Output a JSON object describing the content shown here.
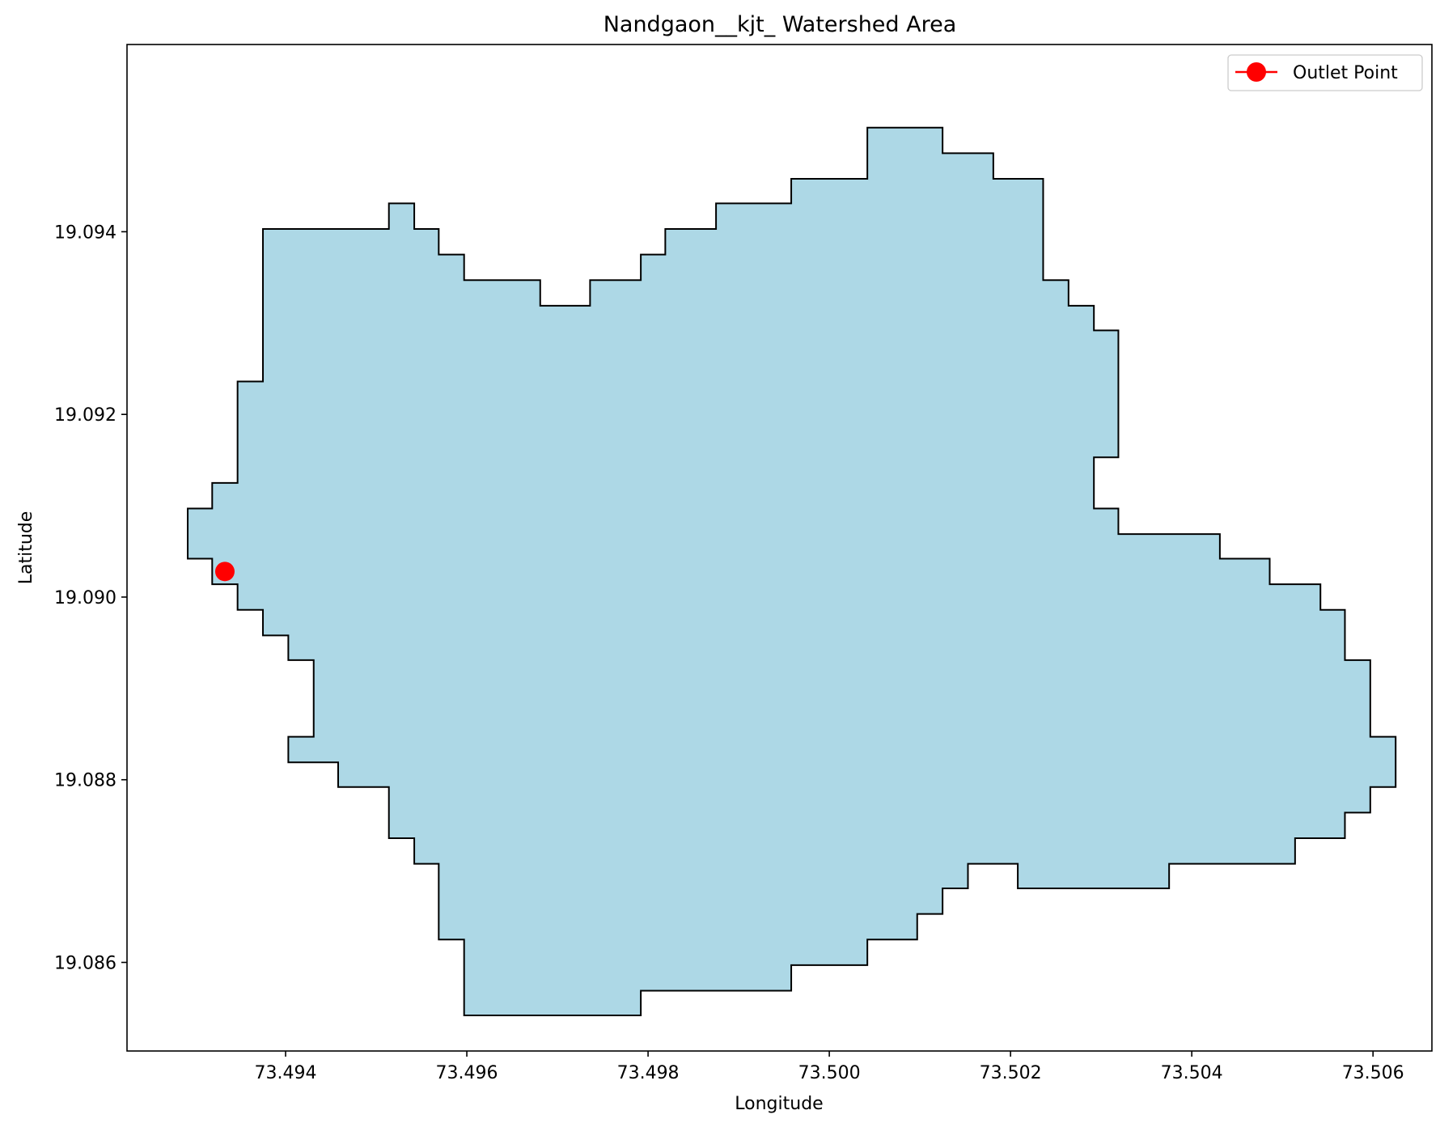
{
  "chart_data": {
    "type": "area",
    "title": "Nandgaon__kjt_ Watershed Area",
    "xlabel": "Longitude",
    "ylabel": "Latitude",
    "xlim": [
      73.49225,
      73.50665
    ],
    "ylim": [
      19.08503,
      19.09605
    ],
    "x_ticks": [
      73.494,
      73.496,
      73.498,
      73.5,
      73.502,
      73.504,
      73.506
    ],
    "x_tick_labels": [
      "73.494",
      "73.496",
      "73.498",
      "73.500",
      "73.502",
      "73.504",
      "73.506"
    ],
    "y_ticks": [
      19.086,
      19.088,
      19.09,
      19.092,
      19.094
    ],
    "y_tick_labels": [
      "19.086",
      "19.088",
      "19.090",
      "19.092",
      "19.094"
    ],
    "grid": false,
    "legend_position": "top-right",
    "colors": {
      "fill": "#add8e6",
      "edge": "#000000",
      "outlet": "#ff0000"
    },
    "series": [
      {
        "name": "Watershed",
        "type": "polygon",
        "points": [
          [
            73.49375,
            19.09403
          ],
          [
            73.49514,
            19.09403
          ],
          [
            73.49514,
            19.09431
          ],
          [
            73.49542,
            19.09431
          ],
          [
            73.49542,
            19.09403
          ],
          [
            73.49569,
            19.09403
          ],
          [
            73.49569,
            19.09375
          ],
          [
            73.49597,
            19.09375
          ],
          [
            73.49597,
            19.09347
          ],
          [
            73.49681,
            19.09347
          ],
          [
            73.49681,
            19.09319
          ],
          [
            73.49736,
            19.09319
          ],
          [
            73.49736,
            19.09347
          ],
          [
            73.49792,
            19.09347
          ],
          [
            73.49792,
            19.09375
          ],
          [
            73.49819,
            19.09375
          ],
          [
            73.49819,
            19.09403
          ],
          [
            73.49875,
            19.09403
          ],
          [
            73.49875,
            19.09431
          ],
          [
            73.49958,
            19.09431
          ],
          [
            73.49958,
            19.09458
          ],
          [
            73.50042,
            19.09458
          ],
          [
            73.50042,
            19.09514
          ],
          [
            73.50125,
            19.09514
          ],
          [
            73.50125,
            19.09486
          ],
          [
            73.50181,
            19.09486
          ],
          [
            73.50181,
            19.09458
          ],
          [
            73.50236,
            19.09458
          ],
          [
            73.50236,
            19.09347
          ],
          [
            73.50264,
            19.09347
          ],
          [
            73.50264,
            19.09319
          ],
          [
            73.50292,
            19.09319
          ],
          [
            73.50292,
            19.09292
          ],
          [
            73.50319,
            19.09292
          ],
          [
            73.50319,
            19.09153
          ],
          [
            73.50292,
            19.09153
          ],
          [
            73.50292,
            19.09097
          ],
          [
            73.50319,
            19.09097
          ],
          [
            73.50319,
            19.09069
          ],
          [
            73.50431,
            19.09069
          ],
          [
            73.50431,
            19.09042
          ],
          [
            73.50486,
            19.09042
          ],
          [
            73.50486,
            19.09014
          ],
          [
            73.50542,
            19.09014
          ],
          [
            73.50542,
            19.08986
          ],
          [
            73.50569,
            19.08986
          ],
          [
            73.50569,
            19.08931
          ],
          [
            73.50597,
            19.08931
          ],
          [
            73.50597,
            19.08847
          ],
          [
            73.50625,
            19.08847
          ],
          [
            73.50625,
            19.08792
          ],
          [
            73.50597,
            19.08792
          ],
          [
            73.50597,
            19.08764
          ],
          [
            73.50569,
            19.08764
          ],
          [
            73.50569,
            19.08736
          ],
          [
            73.50514,
            19.08736
          ],
          [
            73.50514,
            19.08708
          ],
          [
            73.50375,
            19.08708
          ],
          [
            73.50375,
            19.08681
          ],
          [
            73.50208,
            19.08681
          ],
          [
            73.50208,
            19.08708
          ],
          [
            73.50153,
            19.08708
          ],
          [
            73.50153,
            19.08681
          ],
          [
            73.50125,
            19.08681
          ],
          [
            73.50125,
            19.08653
          ],
          [
            73.50097,
            19.08653
          ],
          [
            73.50097,
            19.08625
          ],
          [
            73.50042,
            19.08625
          ],
          [
            73.50042,
            19.08597
          ],
          [
            73.49958,
            19.08597
          ],
          [
            73.49958,
            19.08569
          ],
          [
            73.49792,
            19.08569
          ],
          [
            73.49792,
            19.08542
          ],
          [
            73.49597,
            19.08542
          ],
          [
            73.49597,
            19.08625
          ],
          [
            73.49569,
            19.08625
          ],
          [
            73.49569,
            19.08708
          ],
          [
            73.49542,
            19.08708
          ],
          [
            73.49542,
            19.08736
          ],
          [
            73.49514,
            19.08736
          ],
          [
            73.49514,
            19.08792
          ],
          [
            73.49458,
            19.08792
          ],
          [
            73.49458,
            19.08819
          ],
          [
            73.49403,
            19.08819
          ],
          [
            73.49403,
            19.08847
          ],
          [
            73.49431,
            19.08847
          ],
          [
            73.49431,
            19.08931
          ],
          [
            73.49403,
            19.08931
          ],
          [
            73.49403,
            19.08958
          ],
          [
            73.49375,
            19.08958
          ],
          [
            73.49375,
            19.08986
          ],
          [
            73.49347,
            19.08986
          ],
          [
            73.49347,
            19.09014
          ],
          [
            73.49319,
            19.09014
          ],
          [
            73.49319,
            19.09042
          ],
          [
            73.49292,
            19.09042
          ],
          [
            73.49292,
            19.09097
          ],
          [
            73.49319,
            19.09097
          ],
          [
            73.49319,
            19.09125
          ],
          [
            73.49347,
            19.09125
          ],
          [
            73.49347,
            19.09236
          ],
          [
            73.49375,
            19.09236
          ]
        ]
      },
      {
        "name": "Outlet Point",
        "type": "point",
        "x": 73.49333,
        "y": 19.09028
      }
    ],
    "legend": [
      {
        "label": "Outlet Point"
      }
    ]
  }
}
